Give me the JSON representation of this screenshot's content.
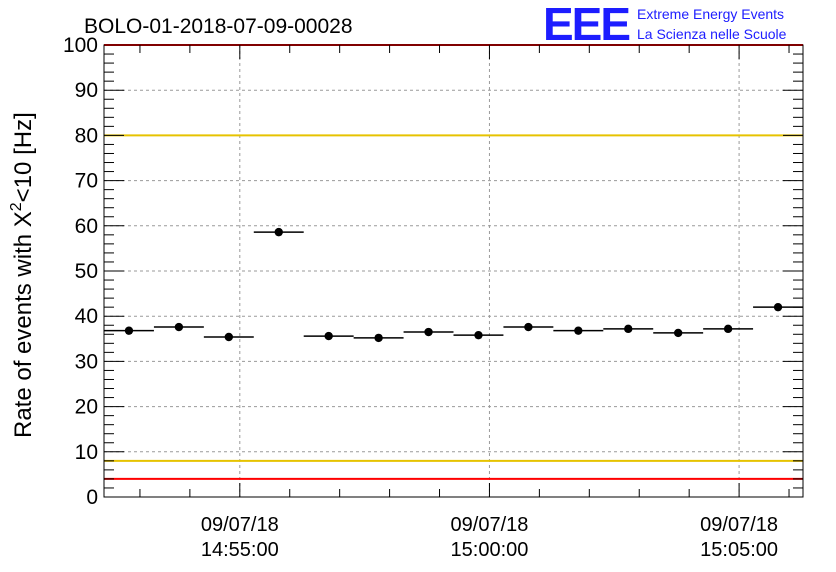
{
  "chart_data": {
    "type": "scatter",
    "title": "BOLO-01-2018-07-09-00028",
    "ylabel_main": "Rate of events with X",
    "ylabel_sup": "2",
    "ylabel_rest": "<10 [Hz]",
    "xlabel": "",
    "ylim": [
      0,
      100
    ],
    "y_ticks": [
      "0",
      "10",
      "20",
      "30",
      "40",
      "50",
      "60",
      "70",
      "80",
      "90",
      "100"
    ],
    "x_range_minutes": [
      0,
      14
    ],
    "x_tick_labels": [
      {
        "date": "09/07/18",
        "time": "14:55:00",
        "minute": 2.72
      },
      {
        "date": "09/07/18",
        "time": "15:00:00",
        "minute": 7.72
      },
      {
        "date": "09/07/18",
        "time": "15:05:00",
        "minute": 12.72
      }
    ],
    "points": [
      {
        "x": 0.5,
        "y": 36.8
      },
      {
        "x": 1.5,
        "y": 37.6
      },
      {
        "x": 2.5,
        "y": 35.4
      },
      {
        "x": 3.5,
        "y": 58.6
      },
      {
        "x": 4.5,
        "y": 35.6
      },
      {
        "x": 5.5,
        "y": 35.2
      },
      {
        "x": 6.5,
        "y": 36.5
      },
      {
        "x": 7.5,
        "y": 35.8
      },
      {
        "x": 8.5,
        "y": 37.6
      },
      {
        "x": 9.5,
        "y": 36.8
      },
      {
        "x": 10.5,
        "y": 37.2
      },
      {
        "x": 11.5,
        "y": 36.3
      },
      {
        "x": 12.5,
        "y": 37.2
      },
      {
        "x": 13.5,
        "y": 42.0
      }
    ],
    "reference_lines": [
      {
        "y": 100,
        "color": "#ff0000"
      },
      {
        "y": 4,
        "color": "#ff0000"
      },
      {
        "y": 80,
        "color": "#e6c300"
      },
      {
        "y": 8,
        "color": "#e6c300"
      }
    ],
    "grid": true
  },
  "logo": {
    "mark": "EEE",
    "line1": "Extreme Energy Events",
    "line2": "La Scienza nelle Scuole",
    "color": "#1d1dff"
  }
}
